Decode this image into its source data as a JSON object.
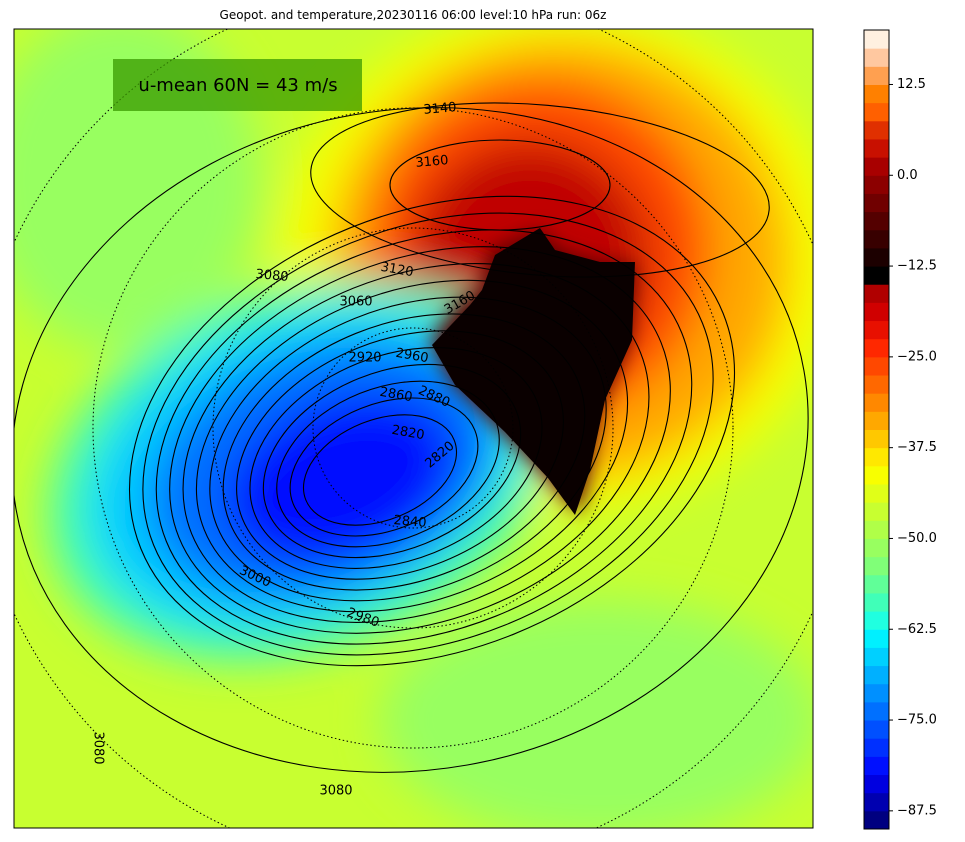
{
  "title": "Geopot. and temperature,20230116 06:00 level:10 hPa run: 06z",
  "annotation": "u-mean 60N = 43 m/s",
  "contour_labels": [
    3140,
    3160,
    3080,
    3120,
    3060,
    3160,
    2920,
    2960,
    2860,
    2880,
    2820,
    2820,
    2840,
    3000,
    2980,
    3080,
    3080
  ],
  "colorbar": {
    "lim": [
      -90,
      20
    ],
    "ticks": [
      {
        "value": -87.5,
        "label": "−87.5"
      },
      {
        "value": -75,
        "label": "−75.0"
      },
      {
        "value": -62.5,
        "label": "−62.5"
      },
      {
        "value": -50,
        "label": "−50.0"
      },
      {
        "value": -37.5,
        "label": "−37.5"
      },
      {
        "value": -25,
        "label": "−25.0"
      },
      {
        "value": -12.5,
        "label": "−12.5"
      },
      {
        "value": 0,
        "label": "0.0"
      },
      12.5
    ],
    "colors": [
      "#000080",
      "#0000b0",
      "#0000e0",
      "#0010ff",
      "#0030ff",
      "#0050ff",
      "#0070ff",
      "#0090ff",
      "#00b0ff",
      "#00d0ff",
      "#00f0ff",
      "#20ffe0",
      "#40ffb8",
      "#60ff98",
      "#80ff78",
      "#98ff60",
      "#b0ff48",
      "#c8ff30",
      "#e0ff18",
      "#f8ff00",
      "#ffe800",
      "#ffc800",
      "#ffa800",
      "#ff8800",
      "#ff6800",
      "#ff4800",
      "#ff2800",
      "#e81000",
      "#d00000",
      "#b00000",
      "#000000",
      "#1c0000",
      "#380000",
      "#540000",
      "#700000",
      "#8c0000",
      "#a80000",
      "#c81000",
      "#e03000",
      "#ff6000",
      "#ff8000",
      "#ffa050",
      "#ffc8a0",
      "#fff0e0"
    ]
  }
}
